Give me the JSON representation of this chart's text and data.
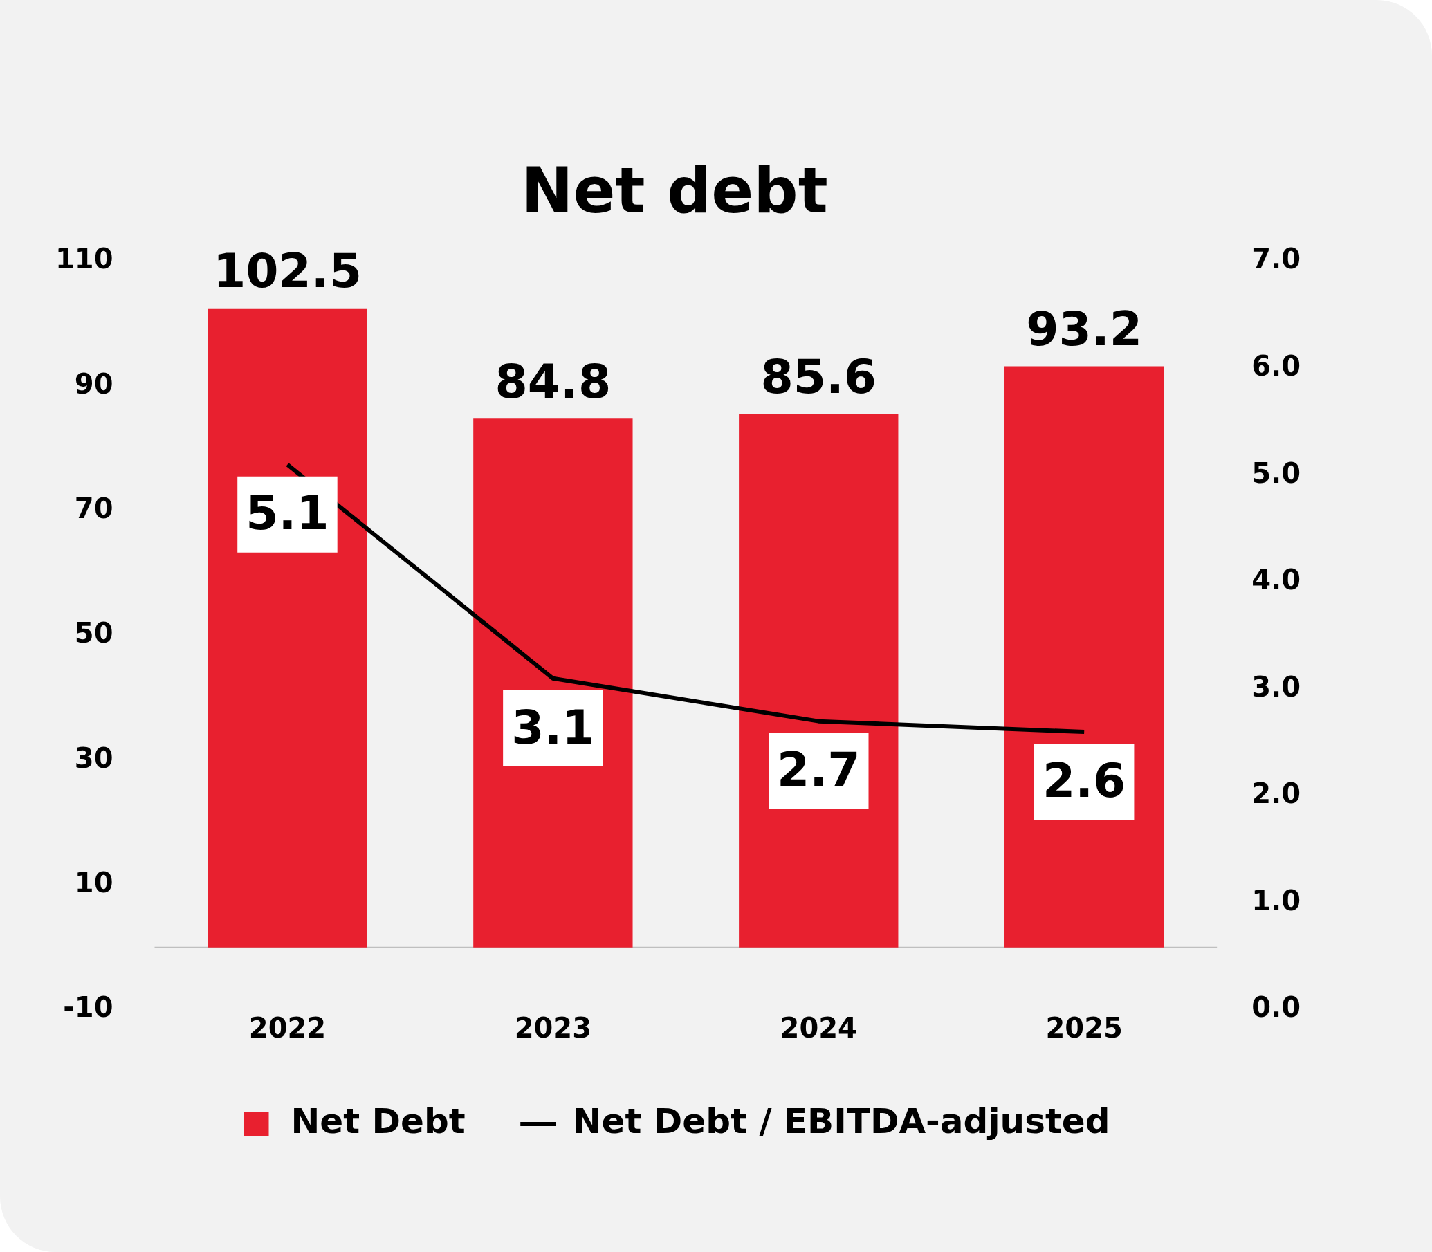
{
  "chart_data": {
    "type": "bar",
    "title": "Net debt",
    "categories": [
      "2022",
      "2023",
      "2024",
      "2025"
    ],
    "series": [
      {
        "name": "Net Debt",
        "color": "#e8202f",
        "values": [
          102.5,
          84.8,
          85.6,
          93.2
        ]
      },
      {
        "name": "Net Debt / EBITDA-adjusted",
        "type": "line",
        "axis": "y2",
        "color": "#000000",
        "values": [
          5.1,
          3.1,
          2.7,
          2.6
        ]
      }
    ],
    "ylim": [
      -10,
      110
    ],
    "yticks": [
      -10,
      10,
      30,
      50,
      70,
      90,
      110
    ],
    "y2lim": [
      0,
      7
    ],
    "y2ticks": [
      {
        "value": 0,
        "label": "0.0"
      },
      {
        "value": 1,
        "label": "1.0"
      },
      {
        "value": 2,
        "label": "2.0"
      },
      {
        "value": 3,
        "label": "3.0"
      },
      {
        "value": 4,
        "label": "4.0"
      },
      {
        "value": 5,
        "label": "5.0"
      },
      {
        "value": 6,
        "label": "6.0"
      },
      {
        "value": 7,
        "label": "7.0"
      }
    ],
    "data_labels": true,
    "grid": false,
    "legend": "bottom",
    "marker": "none"
  }
}
